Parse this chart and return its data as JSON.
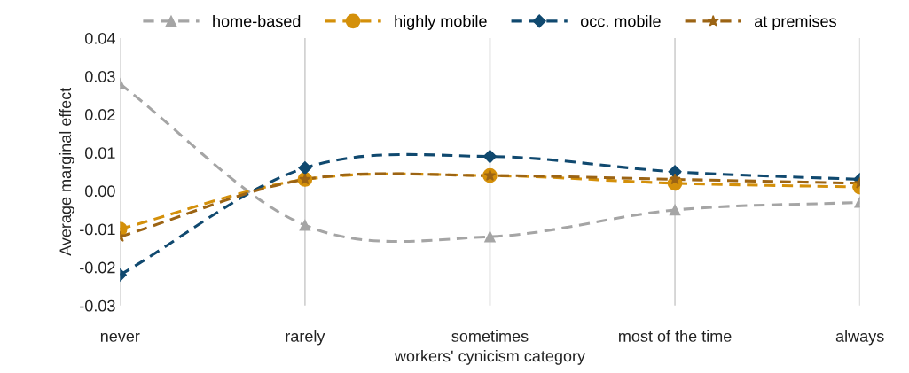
{
  "chart_data": {
    "type": "line",
    "xlabel": "workers' cynicism category",
    "ylabel": "Average marginal effect",
    "categories": [
      "never",
      "rarely",
      "sometimes",
      "most of the time",
      "always"
    ],
    "series": [
      {
        "name": "home-based",
        "color": "#a5a5a5",
        "marker": "triangle",
        "values": [
          0.028,
          -0.009,
          -0.012,
          -0.005,
          -0.003
        ]
      },
      {
        "name": "highly mobile",
        "color": "#d4900a",
        "marker": "circle",
        "values": [
          -0.01,
          0.003,
          0.004,
          0.002,
          0.001
        ]
      },
      {
        "name": "occ. mobile",
        "color": "#10496f",
        "marker": "diamond",
        "values": [
          -0.022,
          0.006,
          0.009,
          0.005,
          0.003
        ]
      },
      {
        "name": "at premises",
        "color": "#9c6414",
        "marker": "star",
        "values": [
          -0.012,
          0.003,
          0.004,
          0.003,
          0.002
        ]
      }
    ],
    "ylim": [
      -0.03,
      0.04
    ],
    "yticks": [
      -0.03,
      -0.02,
      -0.01,
      {
        "value": 0,
        "label": "0.00"
      },
      0.01,
      0.02,
      0.03,
      0.04
    ],
    "grid": "x",
    "legend": "top",
    "line_style": "dashed"
  }
}
